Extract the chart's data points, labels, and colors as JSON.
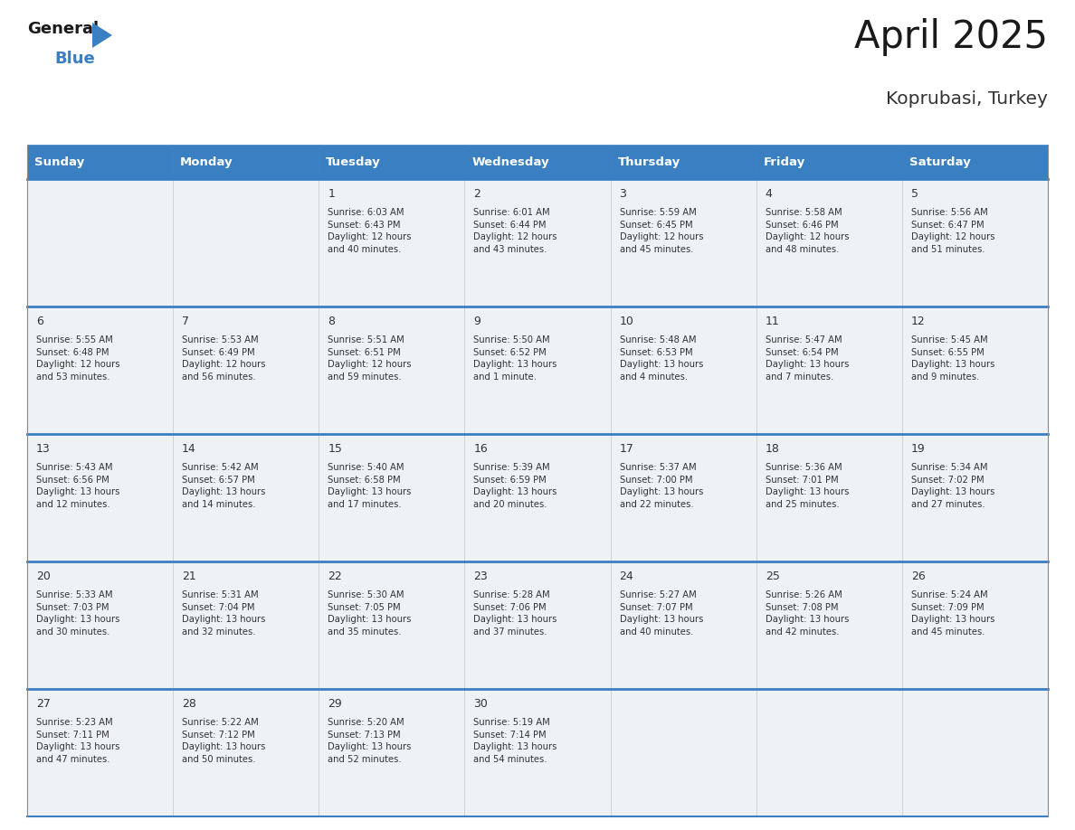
{
  "title": "April 2025",
  "subtitle": "Koprubasi, Turkey",
  "header_bg_color": "#3a7fc1",
  "header_text_color": "#ffffff",
  "row_bg_color": "#eef2f7",
  "row_border_color": "#3a7fc1",
  "cell_border_color": "#aaaaaa",
  "day_headers": [
    "Sunday",
    "Monday",
    "Tuesday",
    "Wednesday",
    "Thursday",
    "Friday",
    "Saturday"
  ],
  "title_color": "#1a1a1a",
  "subtitle_color": "#333333",
  "cell_text_color": "#333333",
  "num_color": "#333333",
  "logo_black": "#1a1a1a",
  "logo_blue": "#3a7fc1",
  "logo_tri_color": "#3a7fc1",
  "calendar_data": [
    [
      {
        "day": null,
        "text": ""
      },
      {
        "day": null,
        "text": ""
      },
      {
        "day": 1,
        "text": "Sunrise: 6:03 AM\nSunset: 6:43 PM\nDaylight: 12 hours\nand 40 minutes."
      },
      {
        "day": 2,
        "text": "Sunrise: 6:01 AM\nSunset: 6:44 PM\nDaylight: 12 hours\nand 43 minutes."
      },
      {
        "day": 3,
        "text": "Sunrise: 5:59 AM\nSunset: 6:45 PM\nDaylight: 12 hours\nand 45 minutes."
      },
      {
        "day": 4,
        "text": "Sunrise: 5:58 AM\nSunset: 6:46 PM\nDaylight: 12 hours\nand 48 minutes."
      },
      {
        "day": 5,
        "text": "Sunrise: 5:56 AM\nSunset: 6:47 PM\nDaylight: 12 hours\nand 51 minutes."
      }
    ],
    [
      {
        "day": 6,
        "text": "Sunrise: 5:55 AM\nSunset: 6:48 PM\nDaylight: 12 hours\nand 53 minutes."
      },
      {
        "day": 7,
        "text": "Sunrise: 5:53 AM\nSunset: 6:49 PM\nDaylight: 12 hours\nand 56 minutes."
      },
      {
        "day": 8,
        "text": "Sunrise: 5:51 AM\nSunset: 6:51 PM\nDaylight: 12 hours\nand 59 minutes."
      },
      {
        "day": 9,
        "text": "Sunrise: 5:50 AM\nSunset: 6:52 PM\nDaylight: 13 hours\nand 1 minute."
      },
      {
        "day": 10,
        "text": "Sunrise: 5:48 AM\nSunset: 6:53 PM\nDaylight: 13 hours\nand 4 minutes."
      },
      {
        "day": 11,
        "text": "Sunrise: 5:47 AM\nSunset: 6:54 PM\nDaylight: 13 hours\nand 7 minutes."
      },
      {
        "day": 12,
        "text": "Sunrise: 5:45 AM\nSunset: 6:55 PM\nDaylight: 13 hours\nand 9 minutes."
      }
    ],
    [
      {
        "day": 13,
        "text": "Sunrise: 5:43 AM\nSunset: 6:56 PM\nDaylight: 13 hours\nand 12 minutes."
      },
      {
        "day": 14,
        "text": "Sunrise: 5:42 AM\nSunset: 6:57 PM\nDaylight: 13 hours\nand 14 minutes."
      },
      {
        "day": 15,
        "text": "Sunrise: 5:40 AM\nSunset: 6:58 PM\nDaylight: 13 hours\nand 17 minutes."
      },
      {
        "day": 16,
        "text": "Sunrise: 5:39 AM\nSunset: 6:59 PM\nDaylight: 13 hours\nand 20 minutes."
      },
      {
        "day": 17,
        "text": "Sunrise: 5:37 AM\nSunset: 7:00 PM\nDaylight: 13 hours\nand 22 minutes."
      },
      {
        "day": 18,
        "text": "Sunrise: 5:36 AM\nSunset: 7:01 PM\nDaylight: 13 hours\nand 25 minutes."
      },
      {
        "day": 19,
        "text": "Sunrise: 5:34 AM\nSunset: 7:02 PM\nDaylight: 13 hours\nand 27 minutes."
      }
    ],
    [
      {
        "day": 20,
        "text": "Sunrise: 5:33 AM\nSunset: 7:03 PM\nDaylight: 13 hours\nand 30 minutes."
      },
      {
        "day": 21,
        "text": "Sunrise: 5:31 AM\nSunset: 7:04 PM\nDaylight: 13 hours\nand 32 minutes."
      },
      {
        "day": 22,
        "text": "Sunrise: 5:30 AM\nSunset: 7:05 PM\nDaylight: 13 hours\nand 35 minutes."
      },
      {
        "day": 23,
        "text": "Sunrise: 5:28 AM\nSunset: 7:06 PM\nDaylight: 13 hours\nand 37 minutes."
      },
      {
        "day": 24,
        "text": "Sunrise: 5:27 AM\nSunset: 7:07 PM\nDaylight: 13 hours\nand 40 minutes."
      },
      {
        "day": 25,
        "text": "Sunrise: 5:26 AM\nSunset: 7:08 PM\nDaylight: 13 hours\nand 42 minutes."
      },
      {
        "day": 26,
        "text": "Sunrise: 5:24 AM\nSunset: 7:09 PM\nDaylight: 13 hours\nand 45 minutes."
      }
    ],
    [
      {
        "day": 27,
        "text": "Sunrise: 5:23 AM\nSunset: 7:11 PM\nDaylight: 13 hours\nand 47 minutes."
      },
      {
        "day": 28,
        "text": "Sunrise: 5:22 AM\nSunset: 7:12 PM\nDaylight: 13 hours\nand 50 minutes."
      },
      {
        "day": 29,
        "text": "Sunrise: 5:20 AM\nSunset: 7:13 PM\nDaylight: 13 hours\nand 52 minutes."
      },
      {
        "day": 30,
        "text": "Sunrise: 5:19 AM\nSunset: 7:14 PM\nDaylight: 13 hours\nand 54 minutes."
      },
      {
        "day": null,
        "text": ""
      },
      {
        "day": null,
        "text": ""
      },
      {
        "day": null,
        "text": ""
      }
    ]
  ]
}
